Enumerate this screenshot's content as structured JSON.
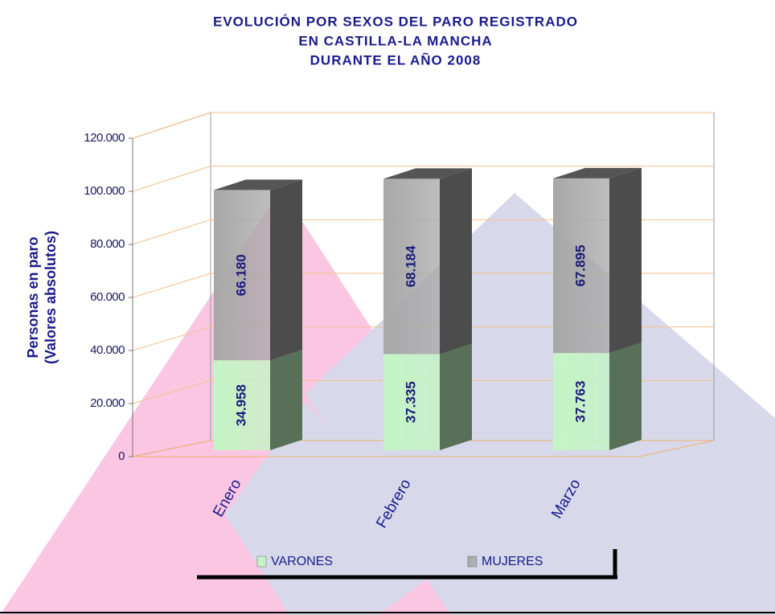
{
  "chart_data": {
    "type": "bar3d-stacked",
    "title": [
      "EVOLUCIÓN POR SEXOS DEL PARO REGISTRADO",
      "EN CASTILLA-LA MANCHA",
      "DURANTE EL AÑO 2008"
    ],
    "y_label": [
      "Personas en paro",
      "(Valores absolutos)"
    ],
    "categories": [
      "Enero",
      "Febrero",
      "Marzo"
    ],
    "series": [
      {
        "name": "VARONES",
        "color": "#c4f5c4",
        "values": [
          34958,
          37335,
          37763
        ],
        "value_labels": [
          "34.958",
          "37.335",
          "37.763"
        ]
      },
      {
        "name": "MUJERES",
        "color": "#a8a8a8",
        "values": [
          66180,
          68184,
          67895
        ],
        "value_labels": [
          "66.180",
          "68.184",
          "67.895"
        ]
      }
    ],
    "ylim": [
      0,
      120000
    ],
    "yticks": [
      0,
      {
        "value": 20000,
        "label": "20.000"
      },
      {
        "value": 40000,
        "label": "40.000"
      },
      {
        "value": 60000,
        "label": "60.000"
      },
      {
        "value": 80000,
        "label": "80.000"
      },
      {
        "value": 100000,
        "label": "100.000"
      },
      {
        "value": 120000,
        "label": "120.000"
      }
    ],
    "grid": true
  }
}
